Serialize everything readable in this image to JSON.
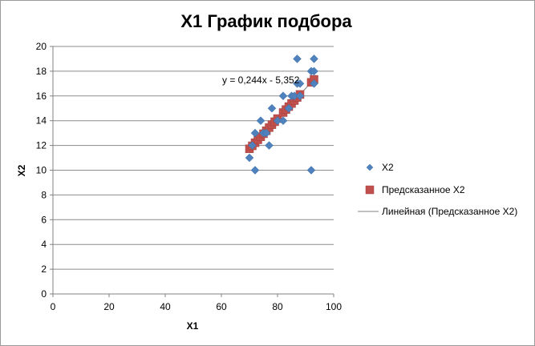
{
  "chart_data": {
    "type": "scatter",
    "title": "X1 График подбора",
    "xlabel": "X1",
    "ylabel": "X2",
    "xlim": [
      0,
      100
    ],
    "ylim": [
      0,
      20
    ],
    "x_ticks": [
      "0",
      "20",
      "40",
      "60",
      "80",
      "100"
    ],
    "y_ticks": [
      "0",
      "2",
      "4",
      "6",
      "8",
      "10",
      "12",
      "14",
      "16",
      "18",
      "20"
    ],
    "grid": "horizontal",
    "legend_position": "right",
    "colors": {
      "observed": "#4F81BD",
      "predicted": "#C0504D",
      "trendline": "#808080"
    },
    "series": [
      {
        "name": "X2",
        "marker": "diamond",
        "points": [
          [
            70,
            11
          ],
          [
            71,
            12
          ],
          [
            72,
            13
          ],
          [
            72,
            10
          ],
          [
            74,
            14
          ],
          [
            75,
            13
          ],
          [
            76,
            13
          ],
          [
            77,
            12
          ],
          [
            78,
            15
          ],
          [
            80,
            14
          ],
          [
            82,
            16
          ],
          [
            82,
            14
          ],
          [
            84,
            15
          ],
          [
            85,
            16
          ],
          [
            86,
            16
          ],
          [
            87,
            19
          ],
          [
            87,
            17
          ],
          [
            88,
            17
          ],
          [
            88,
            16
          ],
          [
            92,
            10
          ],
          [
            92,
            18
          ],
          [
            93,
            19
          ],
          [
            93,
            18
          ],
          [
            93,
            17
          ]
        ]
      },
      {
        "name": "Предсказанное X2",
        "marker": "square",
        "points": [
          [
            70,
            11.73
          ],
          [
            71,
            11.97
          ],
          [
            72,
            12.22
          ],
          [
            73,
            12.46
          ],
          [
            74,
            12.7
          ],
          [
            75,
            12.95
          ],
          [
            76,
            13.19
          ],
          [
            77,
            13.44
          ],
          [
            78,
            13.68
          ],
          [
            79,
            13.92
          ],
          [
            80,
            14.17
          ],
          [
            82,
            14.66
          ],
          [
            83,
            14.9
          ],
          [
            84,
            15.14
          ],
          [
            85,
            15.39
          ],
          [
            86,
            15.63
          ],
          [
            87,
            15.88
          ],
          [
            88,
            16.12
          ],
          [
            92,
            17.1
          ],
          [
            93,
            17.34
          ]
        ]
      }
    ],
    "trendline": {
      "name": "Линейная (Предсказанное X2)",
      "slope": 0.244,
      "intercept": -5.352,
      "x_range": [
        70,
        93
      ],
      "equation_label": "y = 0,244x - 5,352"
    }
  }
}
